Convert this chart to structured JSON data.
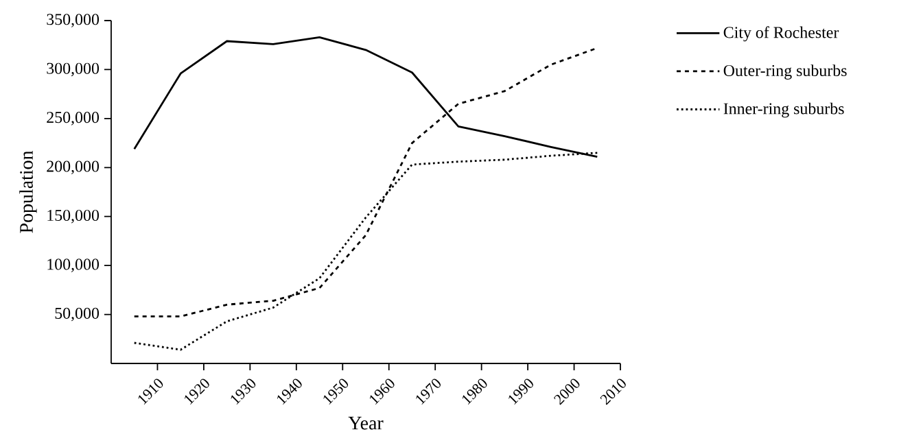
{
  "chart_data": {
    "type": "line",
    "xlabel": "Year",
    "ylabel": "Population",
    "xlim": [
      1900,
      2010
    ],
    "xticks": [
      1910,
      1920,
      1930,
      1940,
      1950,
      1960,
      1970,
      1980,
      1990,
      2000,
      2010
    ],
    "ylim": [
      0,
      350000
    ],
    "yticks": [
      {
        "value": 50000,
        "label": "50,000"
      },
      {
        "value": 100000,
        "label": "100,000"
      },
      {
        "value": 150000,
        "label": "150,000"
      },
      {
        "value": 200000,
        "label": "200,000"
      },
      {
        "value": 250000,
        "label": "250,000"
      },
      {
        "value": 300000,
        "label": "300,000"
      },
      {
        "value": 350000,
        "label": "350,000"
      }
    ],
    "x": [
      1905,
      1915,
      1925,
      1935,
      1945,
      1955,
      1965,
      1975,
      1985,
      1995,
      2005
    ],
    "legend": "top right",
    "grid": false,
    "series": [
      {
        "name": "City of Rochester",
        "color": "#000000",
        "line_style": "solid",
        "values": [
          219000,
          296000,
          329000,
          326000,
          333000,
          320000,
          297000,
          242000,
          232000,
          221000,
          211000
        ]
      },
      {
        "name": "Outer-ring suburbs",
        "color": "#000000",
        "line_style": "dashed",
        "values": [
          48000,
          48000,
          60000,
          64000,
          77000,
          131000,
          225000,
          265000,
          278000,
          305000,
          322000
        ]
      },
      {
        "name": "Inner-ring suburbs",
        "color": "#000000",
        "line_style": "dotted",
        "values": [
          21000,
          14000,
          43000,
          57000,
          87000,
          149000,
          203000,
          206000,
          208000,
          212000,
          215000
        ]
      }
    ]
  }
}
